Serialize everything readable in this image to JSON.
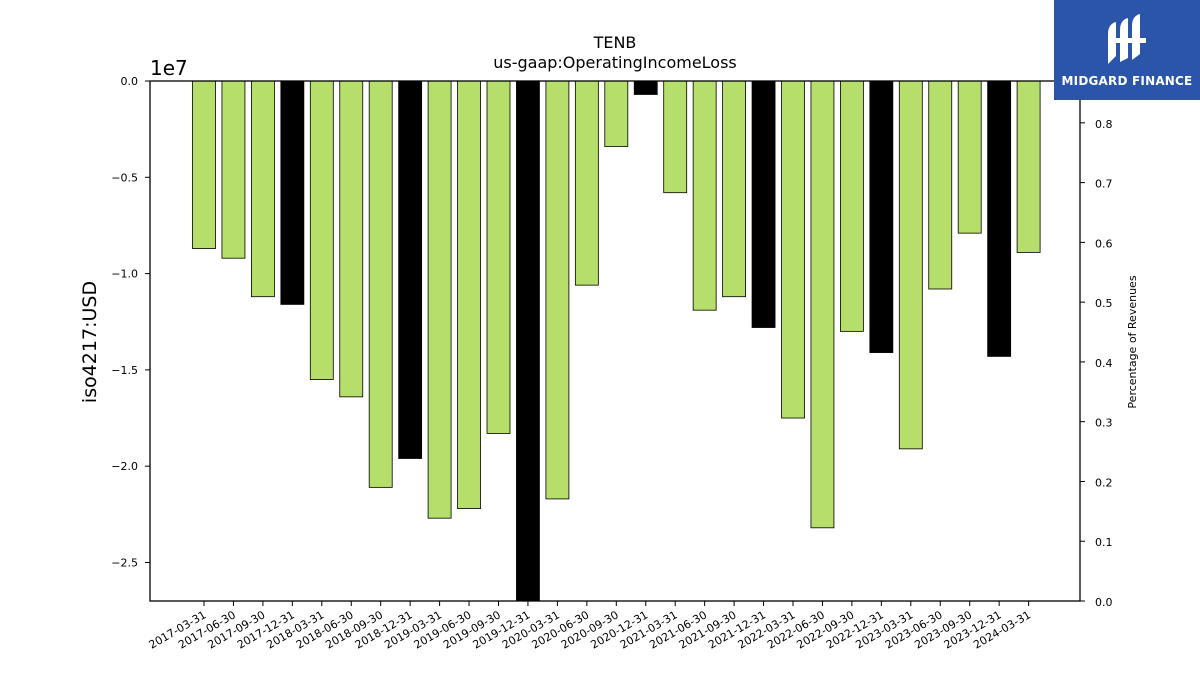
{
  "brand": {
    "name": "MIDGARD FINANCE",
    "color": "#2a55a8"
  },
  "chart_data": {
    "type": "bar",
    "title": "TENB",
    "subtitle": "us-gaap:OperatingIncomeLoss",
    "ylabel": "iso4217:USD",
    "y2label": "Percentage of Revenues",
    "offset_label": "1e7",
    "ylim": [
      -27000000,
      0
    ],
    "y2lim": [
      0,
      0.87
    ],
    "yticks": [
      0,
      -0.5,
      -1.0,
      -1.5,
      -2.0,
      -2.5
    ],
    "yticks_label": [
      "0.0",
      "−0.5",
      "−1.0",
      "−1.5",
      "−2.0",
      "−2.5"
    ],
    "y2ticks": [
      0.0,
      0.1,
      0.2,
      0.3,
      0.4,
      0.5,
      0.6,
      0.7,
      0.8
    ],
    "y2ticks_label": [
      "0.0",
      "0.1",
      "0.2",
      "0.3",
      "0.4",
      "0.5",
      "0.6",
      "0.7",
      "0.8"
    ],
    "colors": {
      "quarter": "#b5de6a",
      "year_end": "#000000"
    },
    "categories": [
      "2017-03-31",
      "2017-06-30",
      "2017-09-30",
      "2017-12-31",
      "2018-03-31",
      "2018-06-30",
      "2018-09-30",
      "2018-12-31",
      "2019-03-31",
      "2019-06-30",
      "2019-09-30",
      "2019-12-31",
      "2020-03-31",
      "2020-06-30",
      "2020-09-30",
      "2020-12-31",
      "2021-03-31",
      "2021-06-30",
      "2021-09-30",
      "2021-12-31",
      "2022-03-31",
      "2022-06-30",
      "2022-09-30",
      "2022-12-31",
      "2023-03-31",
      "2023-06-30",
      "2023-09-30",
      "2023-12-31",
      "2024-03-31"
    ],
    "values": [
      -8700000,
      -9200000,
      -11200000,
      -11600000,
      -15500000,
      -16400000,
      -21100000,
      -19600000,
      -22700000,
      -22200000,
      -18300000,
      -27000000,
      -21700000,
      -10600000,
      -3400000,
      -700000,
      -5800000,
      -11900000,
      -11200000,
      -12800000,
      -17500000,
      -23200000,
      -13000000,
      -14100000,
      -19100000,
      -10800000,
      -7900000,
      -14300000,
      -8900000
    ],
    "year_end": [
      false,
      false,
      false,
      true,
      false,
      false,
      false,
      true,
      false,
      false,
      false,
      true,
      false,
      false,
      false,
      true,
      false,
      false,
      false,
      true,
      false,
      false,
      false,
      true,
      false,
      false,
      false,
      true,
      false
    ],
    "grid": false,
    "legend": "none"
  }
}
